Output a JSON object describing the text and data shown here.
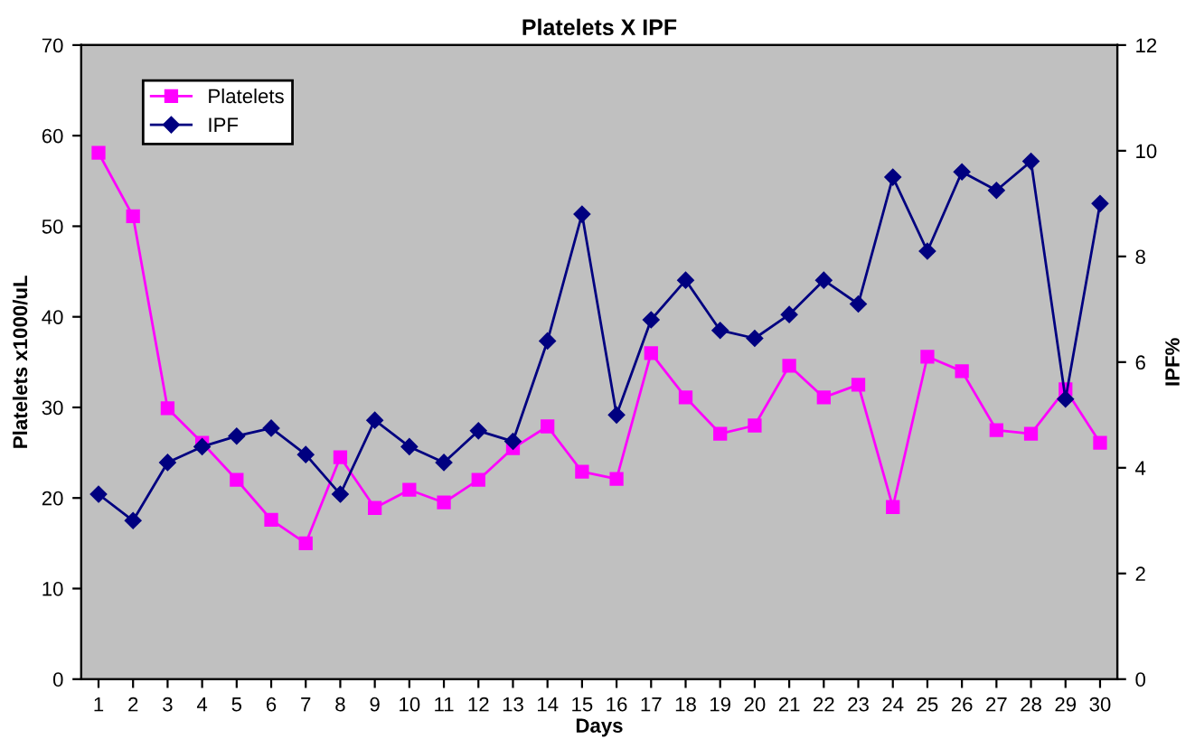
{
  "chart_data": {
    "type": "line",
    "title": "Platelets X IPF",
    "xlabel": "Days",
    "ylabel": "Platelets x1000/uL",
    "y2label": "IPF%",
    "categories": [
      "1",
      "2",
      "3",
      "4",
      "5",
      "6",
      "7",
      "8",
      "9",
      "10",
      "11",
      "12",
      "13",
      "14",
      "15",
      "16",
      "17",
      "18",
      "19",
      "20",
      "21",
      "22",
      "23",
      "24",
      "25",
      "26",
      "27",
      "28",
      "29",
      "30"
    ],
    "series": [
      {
        "name": "Platelets",
        "color": "#ff00ff",
        "marker": "square",
        "values": [
          58.1,
          51.1,
          29.9,
          26.1,
          22.0,
          17.6,
          15.0,
          24.5,
          18.9,
          20.9,
          19.5,
          22.0,
          25.5,
          27.9,
          22.9,
          22.1,
          36.0,
          31.1,
          27.1,
          28.0,
          34.6,
          31.1,
          32.5,
          19.0,
          35.6,
          34.0,
          27.5,
          27.1,
          32.0,
          26.1
        ]
      },
      {
        "name": "IPF",
        "color": "#000080",
        "marker": "diamond",
        "axis": "y2",
        "values": [
          3.5,
          3.0,
          4.1,
          4.4,
          4.6,
          4.75,
          4.25,
          3.5,
          4.9,
          4.4,
          4.1,
          4.7,
          4.5,
          6.4,
          8.8,
          5.0,
          6.8,
          7.55,
          6.6,
          6.45,
          6.9,
          7.55,
          7.1,
          9.5,
          8.1,
          9.6,
          9.25,
          9.8,
          5.3,
          9.0
        ]
      }
    ],
    "ylim": [
      0,
      70
    ],
    "yticks": [
      0,
      10,
      20,
      30,
      40,
      50,
      60,
      70
    ],
    "y2lim": [
      0,
      12
    ],
    "y2ticks": [
      0,
      2,
      4,
      6,
      8,
      10,
      12
    ],
    "grid": false,
    "legend": "top left",
    "line_style": "solid"
  }
}
